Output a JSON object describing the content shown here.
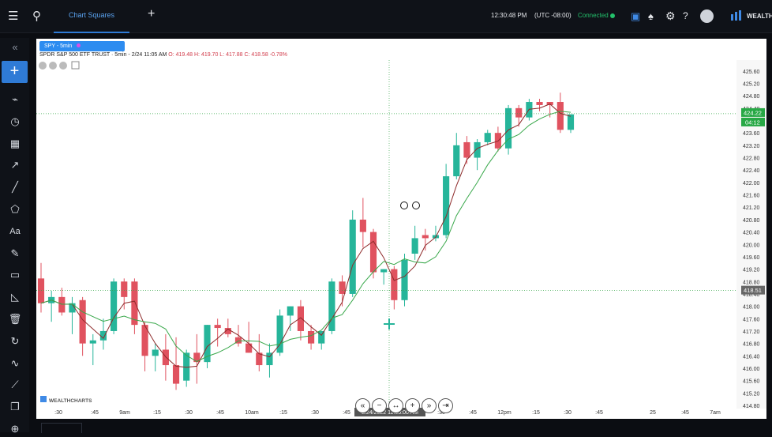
{
  "topbar": {
    "menu_icon": "hamburger-icon",
    "search_icon": "search-icon",
    "tab_label": "Chart Squares",
    "add_tab_icon": "plus-icon",
    "time": "12:30:48 PM",
    "timezone": "(UTC -08:00)",
    "status": "Connected",
    "brand": "WEALTH"
  },
  "sidebar": {
    "icons": [
      "collapse-icon",
      "add-icon",
      "line-chart-icon",
      "clock-icon",
      "calendar-icon",
      "trend-icon",
      "line-tool-icon",
      "shapes-icon",
      "text-icon",
      "pencil-icon",
      "ruler-icon",
      "measure-icon",
      "trash-icon",
      "refresh-icon",
      "indicator-icon",
      "polyline-icon",
      "copy-icon",
      "target-icon"
    ],
    "text_tool": "Aa"
  },
  "chart": {
    "symbol_tab": "SPY - 5min",
    "quote_prefix": "SPDR S&P 500 ETF TRUST · 5min - 2/24 11:05 AM",
    "quote_o": "O: 419.48",
    "quote_h": "H: 419.70",
    "quote_l": "L: 417.88",
    "quote_c": "C: 418.58",
    "quote_chg": "-0.78%",
    "crosshair_time": "2/24/2022 11:05:00 AM",
    "watermark": "WEALTHCHARTS",
    "last_price": "424.22",
    "countdown": "04:12",
    "cursor_price": "418.51"
  },
  "chart_data": {
    "type": "candlestick",
    "x": [
      ":30",
      ":45",
      "9am",
      ":15",
      ":30",
      ":45",
      "10am",
      ":15",
      ":30",
      ":45",
      "11",
      ":15",
      ":30",
      ":45",
      "12pm",
      ":15",
      ":30",
      ":45",
      "25",
      ":45",
      "7am"
    ],
    "ylim": [
      414.8,
      425.8
    ],
    "y_ticks": [
      "425.60",
      "425.20",
      "424.80",
      "424.40",
      "424.00",
      "423.60",
      "423.20",
      "422.80",
      "422.40",
      "422.00",
      "421.60",
      "421.20",
      "420.80",
      "420.40",
      "420.00",
      "419.60",
      "419.20",
      "418.80",
      "418.40",
      "418.00",
      "417.60",
      "417.20",
      "416.80",
      "416.40",
      "416.00",
      "415.60",
      "415.20",
      "414.80"
    ],
    "candles": [
      [
        418.9,
        419.4,
        417.8,
        418.1
      ],
      [
        418.1,
        418.5,
        417.5,
        418.3
      ],
      [
        418.3,
        418.6,
        417.7,
        417.8
      ],
      [
        417.8,
        418.3,
        417.1,
        418.1
      ],
      [
        418.2,
        418.3,
        416.4,
        416.8
      ],
      [
        416.8,
        417.1,
        416.1,
        416.9
      ],
      [
        416.9,
        417.6,
        416.6,
        417.2
      ],
      [
        417.2,
        418.9,
        417.1,
        418.8
      ],
      [
        418.8,
        418.9,
        417.9,
        418.3
      ],
      [
        418.8,
        418.9,
        417.1,
        417.4
      ],
      [
        417.4,
        417.5,
        415.9,
        416.4
      ],
      [
        416.4,
        416.8,
        415.9,
        416.6
      ],
      [
        416.6,
        417.1,
        415.6,
        416.1
      ],
      [
        416.1,
        417.0,
        415.3,
        415.5
      ],
      [
        415.6,
        416.6,
        415.4,
        416.5
      ],
      [
        416.5,
        417.1,
        415.5,
        416.2
      ],
      [
        416.2,
        417.4,
        416.0,
        417.4
      ],
      [
        417.4,
        417.6,
        416.7,
        417.3
      ],
      [
        417.3,
        417.6,
        417.0,
        417.1
      ],
      [
        417.0,
        417.4,
        416.7,
        416.8
      ],
      [
        416.8,
        417.5,
        416.5,
        416.5
      ],
      [
        416.5,
        417.1,
        415.9,
        416.1
      ],
      [
        416.1,
        416.8,
        415.7,
        416.5
      ],
      [
        416.5,
        417.9,
        416.4,
        417.7
      ],
      [
        417.7,
        418.0,
        417.2,
        418.0
      ],
      [
        418.0,
        418.2,
        416.9,
        417.2
      ],
      [
        417.2,
        417.4,
        416.6,
        416.8
      ],
      [
        416.8,
        417.2,
        416.6,
        417.2
      ],
      [
        417.2,
        418.9,
        417.1,
        418.8
      ],
      [
        418.8,
        419.0,
        418.0,
        418.4
      ],
      [
        418.4,
        421.1,
        418.3,
        420.8
      ],
      [
        420.8,
        421.5,
        419.9,
        420.4
      ],
      [
        420.4,
        420.5,
        418.9,
        419.1
      ],
      [
        419.1,
        419.2,
        418.7,
        419.2
      ],
      [
        419.2,
        419.3,
        417.9,
        418.2
      ],
      [
        418.2,
        419.7,
        418.0,
        419.5
      ],
      [
        419.7,
        420.6,
        419.5,
        420.2
      ],
      [
        420.3,
        420.5,
        419.8,
        420.2
      ],
      [
        420.2,
        420.6,
        420.1,
        420.3
      ],
      [
        420.3,
        422.6,
        420.2,
        422.2
      ],
      [
        422.2,
        423.6,
        422.1,
        423.2
      ],
      [
        423.3,
        423.5,
        422.6,
        422.8
      ],
      [
        422.8,
        423.4,
        422.4,
        423.3
      ],
      [
        423.3,
        423.7,
        423.2,
        423.6
      ],
      [
        423.6,
        423.8,
        423.0,
        423.1
      ],
      [
        423.1,
        424.5,
        422.9,
        424.4
      ],
      [
        424.4,
        424.5,
        423.8,
        424.1
      ],
      [
        424.1,
        424.7,
        424.0,
        424.6
      ],
      [
        424.6,
        424.7,
        424.3,
        424.5
      ],
      [
        424.6,
        424.6,
        424.1,
        424.5
      ],
      [
        424.6,
        424.9,
        423.6,
        423.7
      ],
      [
        423.7,
        424.2,
        423.6,
        424.2
      ]
    ]
  }
}
